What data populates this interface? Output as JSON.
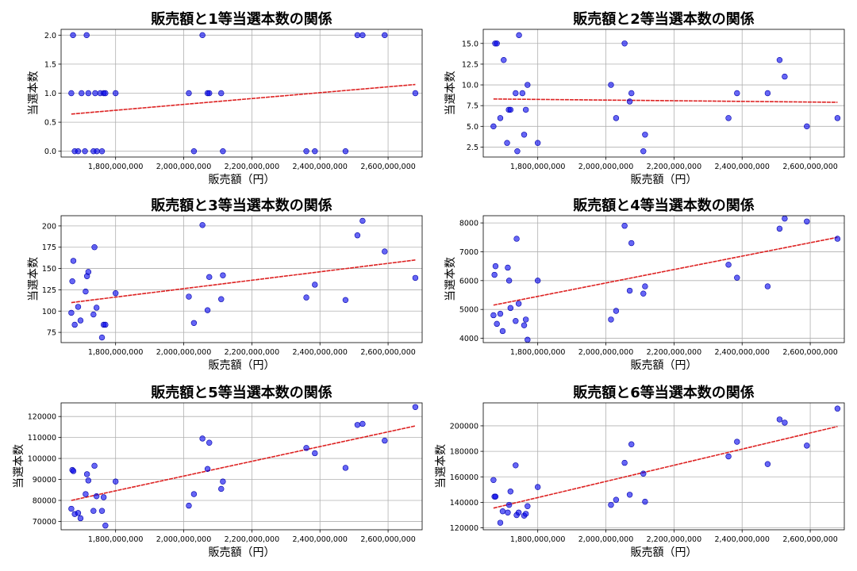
{
  "figure_colors": {
    "points": "#0000ee",
    "trend": "#dd2222",
    "grid": "#b0b0b0"
  },
  "chart_data": [
    {
      "type": "scatter",
      "title": "販売額と1等当選本数の関係",
      "xlabel": "販売額（円）",
      "ylabel": "当選本数",
      "xlim": [
        1640000000,
        2700000000
      ],
      "ylim": [
        -0.1,
        2.1
      ],
      "xticks": [
        1800000000,
        2000000000,
        2200000000,
        2400000000,
        2600000000
      ],
      "xtick_labels": [
        "1,800,000,000",
        "2,000,000,000",
        "2,200,000,000",
        "2,400,000,000",
        "2,600,000,000"
      ],
      "yticks": [
        0.0,
        0.5,
        1.0,
        1.5,
        2.0
      ],
      "ytick_labels": [
        "0.0",
        "0.5",
        "1.0",
        "1.5",
        "2.0"
      ],
      "x": [
        1670000000,
        1675000000,
        1680000000,
        1690000000,
        1700000000,
        1710000000,
        1715000000,
        1720000000,
        1735000000,
        1740000000,
        1745000000,
        1755000000,
        1760000000,
        1765000000,
        1770000000,
        1800000000,
        2015000000,
        2030000000,
        2055000000,
        2070000000,
        2075000000,
        2110000000,
        2115000000,
        2360000000,
        2385000000,
        2475000000,
        2510000000,
        2525000000,
        2590000000,
        2680000000
      ],
      "y": [
        1,
        2,
        0,
        0,
        1,
        0,
        2,
        1,
        0,
        1,
        0,
        1,
        0,
        1,
        1,
        1,
        1,
        0,
        2,
        1,
        1,
        1,
        0,
        0,
        0,
        0,
        2,
        2,
        2,
        1
      ],
      "trend": {
        "x": [
          1670000000,
          2680000000
        ],
        "y": [
          0.64,
          1.15
        ]
      }
    },
    {
      "type": "scatter",
      "title": "販売額と2等当選本数の関係",
      "xlabel": "販売額（円）",
      "ylabel": "当選本数",
      "xlim": [
        1640000000,
        2700000000
      ],
      "ylim": [
        1.3,
        16.7
      ],
      "xticks": [
        1800000000,
        2000000000,
        2200000000,
        2400000000,
        2600000000
      ],
      "xtick_labels": [
        "1,800,000,000",
        "2,000,000,000",
        "2,200,000,000",
        "2,400,000,000",
        "2,600,000,000"
      ],
      "yticks": [
        2.5,
        5.0,
        7.5,
        10.0,
        12.5,
        15.0
      ],
      "ytick_labels": [
        "2.5",
        "5.0",
        "7.5",
        "10.0",
        "12.5",
        "15.0"
      ],
      "x": [
        1670000000,
        1675000000,
        1680000000,
        1690000000,
        1700000000,
        1710000000,
        1715000000,
        1720000000,
        1735000000,
        1740000000,
        1745000000,
        1755000000,
        1760000000,
        1765000000,
        1770000000,
        1800000000,
        2015000000,
        2030000000,
        2055000000,
        2070000000,
        2075000000,
        2110000000,
        2115000000,
        2360000000,
        2385000000,
        2475000000,
        2510000000,
        2525000000,
        2590000000,
        2680000000
      ],
      "y": [
        5,
        15,
        15,
        6,
        13,
        3,
        7,
        7,
        9,
        2,
        16,
        9,
        4,
        7,
        10,
        3,
        10,
        6,
        15,
        8,
        9,
        2,
        4,
        6,
        9,
        9,
        13,
        11,
        5,
        6
      ],
      "trend": {
        "x": [
          1670000000,
          2680000000
        ],
        "y": [
          8.3,
          7.9
        ]
      }
    },
    {
      "type": "scatter",
      "title": "販売額と3等当選本数の関係",
      "xlabel": "販売額（円）",
      "ylabel": "当選本数",
      "xlim": [
        1640000000,
        2700000000
      ],
      "ylim": [
        63,
        212
      ],
      "xticks": [
        1800000000,
        2000000000,
        2200000000,
        2400000000,
        2600000000
      ],
      "xtick_labels": [
        "1,800,000,000",
        "2,000,000,000",
        "2,200,000,000",
        "2,400,000,000",
        "2,600,000,000"
      ],
      "yticks": [
        75,
        100,
        125,
        150,
        175,
        200
      ],
      "ytick_labels": [
        "75",
        "100",
        "125",
        "150",
        "175",
        "200"
      ],
      "x": [
        1670000000,
        1673000000,
        1676000000,
        1680000000,
        1690000000,
        1697000000,
        1712000000,
        1716000000,
        1720000000,
        1735000000,
        1738000000,
        1744000000,
        1760000000,
        1765000000,
        1770000000,
        1800000000,
        2015000000,
        2030000000,
        2055000000,
        2070000000,
        2075000000,
        2110000000,
        2115000000,
        2360000000,
        2385000000,
        2475000000,
        2510000000,
        2525000000,
        2590000000,
        2680000000
      ],
      "y": [
        98,
        135,
        159,
        84,
        105,
        89,
        123,
        141,
        146,
        96,
        175,
        104,
        69,
        84,
        84,
        121,
        117,
        86,
        201,
        101,
        140,
        114,
        142,
        116,
        131,
        113,
        189,
        206,
        170,
        139
      ],
      "trend": {
        "x": [
          1670000000,
          2680000000
        ],
        "y": [
          110,
          160
        ]
      }
    },
    {
      "type": "scatter",
      "title": "販売額と4等当選本数の関係",
      "xlabel": "販売額（円）",
      "ylabel": "当選本数",
      "xlim": [
        1640000000,
        2700000000
      ],
      "ylim": [
        3850,
        8250
      ],
      "xticks": [
        1800000000,
        2000000000,
        2200000000,
        2400000000,
        2600000000
      ],
      "xtick_labels": [
        "1,800,000,000",
        "2,000,000,000",
        "2,200,000,000",
        "2,400,000,000",
        "2,600,000,000"
      ],
      "yticks": [
        4000,
        5000,
        6000,
        7000,
        8000
      ],
      "ytick_labels": [
        "4000",
        "5000",
        "6000",
        "7000",
        "8000"
      ],
      "x": [
        1670000000,
        1673000000,
        1676000000,
        1680000000,
        1690000000,
        1697000000,
        1712000000,
        1716000000,
        1720000000,
        1735000000,
        1738000000,
        1744000000,
        1760000000,
        1765000000,
        1770000000,
        1800000000,
        2015000000,
        2030000000,
        2055000000,
        2070000000,
        2075000000,
        2110000000,
        2115000000,
        2360000000,
        2385000000,
        2475000000,
        2510000000,
        2525000000,
        2590000000,
        2680000000
      ],
      "y": [
        4800,
        6200,
        6500,
        4500,
        4850,
        4250,
        6450,
        6000,
        5050,
        4600,
        7450,
        5200,
        4450,
        4650,
        3950,
        6000,
        4650,
        4950,
        7900,
        5650,
        7300,
        5550,
        5800,
        6550,
        6100,
        5800,
        7800,
        8150,
        8050,
        7450
      ],
      "trend": {
        "x": [
          1670000000,
          2680000000
        ],
        "y": [
          5150,
          7500
        ]
      }
    },
    {
      "type": "scatter",
      "title": "販売額と5等当選本数の関係",
      "xlabel": "販売額（円）",
      "ylabel": "当選本数",
      "xlim": [
        1640000000,
        2700000000
      ],
      "ylim": [
        66000,
        126500
      ],
      "xticks": [
        1800000000,
        2000000000,
        2200000000,
        2400000000,
        2600000000
      ],
      "xtick_labels": [
        "1,800,000,000",
        "2,000,000,000",
        "2,200,000,000",
        "2,400,000,000",
        "2,600,000,000"
      ],
      "yticks": [
        70000,
        80000,
        90000,
        100000,
        110000,
        120000
      ],
      "ytick_labels": [
        "70000",
        "80000",
        "90000",
        "100000",
        "110000",
        "120000"
      ],
      "x": [
        1670000000,
        1673000000,
        1676000000,
        1680000000,
        1690000000,
        1697000000,
        1712000000,
        1716000000,
        1720000000,
        1735000000,
        1738000000,
        1744000000,
        1760000000,
        1765000000,
        1770000000,
        1800000000,
        2015000000,
        2030000000,
        2055000000,
        2070000000,
        2075000000,
        2110000000,
        2115000000,
        2360000000,
        2385000000,
        2475000000,
        2510000000,
        2525000000,
        2590000000,
        2680000000
      ],
      "y": [
        76000,
        94500,
        94000,
        73500,
        74000,
        71500,
        83000,
        92500,
        89500,
        75000,
        96500,
        82000,
        75000,
        81500,
        68000,
        89000,
        77500,
        83000,
        109500,
        95000,
        107500,
        85500,
        89000,
        105000,
        102500,
        95500,
        116000,
        116500,
        108500,
        124500
      ],
      "trend": {
        "x": [
          1670000000,
          2680000000
        ],
        "y": [
          80000,
          115500
        ]
      }
    },
    {
      "type": "scatter",
      "title": "販売額と6等当選本数の関係",
      "xlabel": "販売額（円）",
      "ylabel": "当選本数",
      "xlim": [
        1640000000,
        2700000000
      ],
      "ylim": [
        118500,
        218000
      ],
      "xticks": [
        1800000000,
        2000000000,
        2200000000,
        2400000000,
        2600000000
      ],
      "xtick_labels": [
        "1,800,000,000",
        "2,000,000,000",
        "2,200,000,000",
        "2,400,000,000",
        "2,600,000,000"
      ],
      "yticks": [
        120000,
        140000,
        160000,
        180000,
        200000
      ],
      "ytick_labels": [
        "120000",
        "140000",
        "160000",
        "180000",
        "200000"
      ],
      "x": [
        1670000000,
        1673000000,
        1676000000,
        1690000000,
        1697000000,
        1712000000,
        1716000000,
        1720000000,
        1735000000,
        1738000000,
        1744000000,
        1760000000,
        1765000000,
        1770000000,
        1800000000,
        2015000000,
        2030000000,
        2055000000,
        2070000000,
        2075000000,
        2110000000,
        2115000000,
        2360000000,
        2385000000,
        2475000000,
        2510000000,
        2525000000,
        2590000000,
        2680000000
      ],
      "y": [
        157500,
        144500,
        144500,
        124000,
        133000,
        132000,
        138000,
        148500,
        169000,
        130000,
        132000,
        129500,
        131000,
        137000,
        152000,
        138000,
        142000,
        171000,
        146000,
        185500,
        162500,
        140500,
        176000,
        187500,
        170000,
        205000,
        202500,
        184500,
        213500
      ],
      "trend": {
        "x": [
          1670000000,
          2680000000
        ],
        "y": [
          135500,
          199500
        ]
      }
    }
  ]
}
